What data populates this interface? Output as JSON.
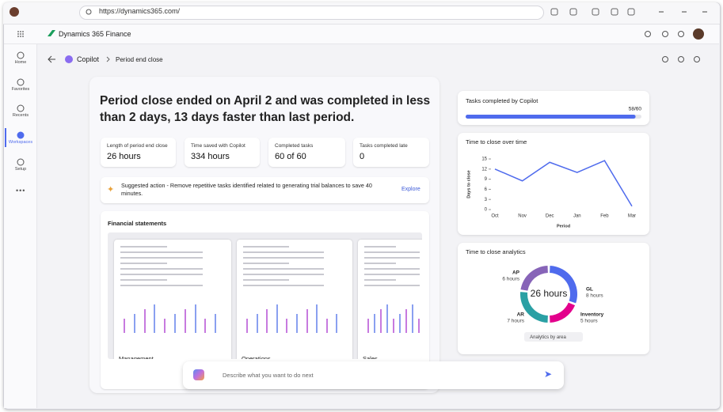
{
  "browser": {
    "url": "https://dynamics365.com/"
  },
  "app": {
    "title": "Dynamics 365 Finance"
  },
  "nav": [
    {
      "label": "Home"
    },
    {
      "label": "Favorites"
    },
    {
      "label": "Recents"
    },
    {
      "label": "Workspaces"
    },
    {
      "label": "Setup"
    }
  ],
  "breadcrumb": [
    "Copilot",
    "Period end close"
  ],
  "headline": "Period close ended on April 2 and was completed in less than 2 days, 13 days faster than last period.",
  "stats": [
    {
      "label": "Length of period end close",
      "value": "26 hours"
    },
    {
      "label": "Time saved with Copilot",
      "value": "334 hours"
    },
    {
      "label": "Completed tasks",
      "value": "60 of 60"
    },
    {
      "label": "Tasks completed late",
      "value": "0"
    }
  ],
  "suggestion": {
    "text": "Suggested action - Remove repetitive tasks identified related to generating trial balances to save 40 minutes.",
    "action": "Explore"
  },
  "financial": {
    "title": "Financial statements",
    "cards": [
      "Management",
      "Operations",
      "Sales"
    ]
  },
  "prompt": {
    "placeholder": "Describe what you want to do next"
  },
  "tasks": {
    "title": "Tasks completed by Copilot",
    "completed": 58,
    "total": 60,
    "label": "58/60",
    "color": "#4f6bed"
  },
  "line_chart": {
    "type": "line",
    "title": "Time to close over time",
    "x_label": "Period",
    "y_label": "Days to close",
    "categories": [
      "Oct",
      "Nov",
      "Dec",
      "Jan",
      "Feb",
      "Mar"
    ],
    "values": [
      12,
      8.5,
      14,
      11,
      14.5,
      1
    ],
    "color": "#4f6bed",
    "ylim": [
      0,
      15
    ],
    "yticks": [
      0,
      3,
      6,
      9,
      12,
      15
    ]
  },
  "donut_chart": {
    "type": "pie",
    "title": "Time to close analytics",
    "center_label": "26 hours",
    "filter": "Analytics by area",
    "categories": [
      "GL",
      "Inventory",
      "AR",
      "AP"
    ],
    "values": [
      8,
      5,
      7,
      6
    ],
    "value_labels": [
      "8 hours",
      "5 hours",
      "7 hours",
      "6 hours"
    ],
    "colors": [
      "#4f6bed",
      "#e3008c",
      "#2aa0a4",
      "#8764b8"
    ]
  }
}
